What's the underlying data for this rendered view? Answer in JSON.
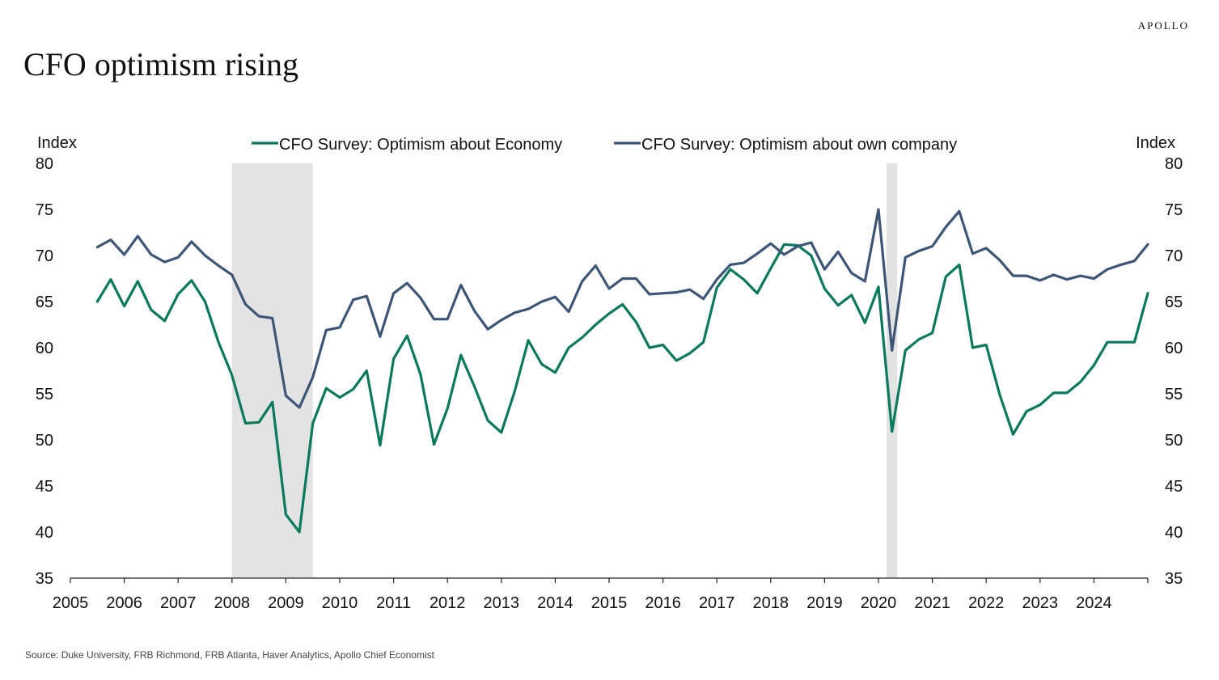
{
  "brand": "APOLLO",
  "title": "CFO optimism rising",
  "source": "Source: Duke University, FRB Richmond, FRB Atlanta, Haver Analytics, Apollo Chief Economist",
  "chart_data": {
    "type": "line",
    "ylabel_left": "Index",
    "ylabel_right": "Index",
    "ylim": [
      35,
      80
    ],
    "yticks": [
      35,
      40,
      45,
      50,
      55,
      60,
      65,
      70,
      75,
      80
    ],
    "xlim": [
      2005,
      2025
    ],
    "xticks": [
      "2005",
      "2006",
      "2007",
      "2008",
      "2009",
      "2010",
      "2011",
      "2012",
      "2013",
      "2014",
      "2015",
      "2016",
      "2017",
      "2018",
      "2019",
      "2020",
      "2021",
      "2022",
      "2023",
      "2024"
    ],
    "grid": false,
    "legend": "top-center",
    "recessions": [
      {
        "start": 2008.0,
        "end": 2009.5
      },
      {
        "start": 2020.15,
        "end": 2020.35
      }
    ],
    "recession_color": "#e3e3e3",
    "series": [
      {
        "name": "CFO Survey: Optimism about Economy",
        "color": "#0a7a5c",
        "points": [
          [
            2005.5,
            65.0
          ],
          [
            2005.75,
            67.4
          ],
          [
            2006.0,
            64.5
          ],
          [
            2006.25,
            67.2
          ],
          [
            2006.5,
            64.1
          ],
          [
            2006.75,
            62.9
          ],
          [
            2007.0,
            65.8
          ],
          [
            2007.25,
            67.3
          ],
          [
            2007.5,
            65.0
          ],
          [
            2007.75,
            60.6
          ],
          [
            2008.0,
            57.0
          ],
          [
            2008.25,
            51.8
          ],
          [
            2008.5,
            51.9
          ],
          [
            2008.75,
            54.1
          ],
          [
            2009.0,
            41.9
          ],
          [
            2009.25,
            40.0
          ],
          [
            2009.5,
            51.8
          ],
          [
            2009.75,
            55.6
          ],
          [
            2010.0,
            54.6
          ],
          [
            2010.25,
            55.5
          ],
          [
            2010.5,
            57.5
          ],
          [
            2010.75,
            49.4
          ],
          [
            2011.0,
            58.8
          ],
          [
            2011.25,
            61.3
          ],
          [
            2011.5,
            57.1
          ],
          [
            2011.75,
            49.5
          ],
          [
            2012.0,
            53.4
          ],
          [
            2012.25,
            59.2
          ],
          [
            2012.5,
            55.8
          ],
          [
            2012.75,
            52.1
          ],
          [
            2013.0,
            50.8
          ],
          [
            2013.25,
            55.3
          ],
          [
            2013.5,
            60.8
          ],
          [
            2013.75,
            58.2
          ],
          [
            2014.0,
            57.3
          ],
          [
            2014.25,
            60.0
          ],
          [
            2014.5,
            61.1
          ],
          [
            2014.75,
            62.5
          ],
          [
            2015.0,
            63.7
          ],
          [
            2015.25,
            64.7
          ],
          [
            2015.5,
            62.8
          ],
          [
            2015.75,
            60.0
          ],
          [
            2016.0,
            60.3
          ],
          [
            2016.25,
            58.6
          ],
          [
            2016.5,
            59.4
          ],
          [
            2016.75,
            60.6
          ],
          [
            2017.0,
            66.5
          ],
          [
            2017.25,
            68.5
          ],
          [
            2017.5,
            67.4
          ],
          [
            2017.75,
            65.9
          ],
          [
            2018.0,
            68.6
          ],
          [
            2018.25,
            71.2
          ],
          [
            2018.5,
            71.1
          ],
          [
            2018.75,
            70.0
          ],
          [
            2019.0,
            66.4
          ],
          [
            2019.25,
            64.6
          ],
          [
            2019.5,
            65.7
          ],
          [
            2019.75,
            62.7
          ],
          [
            2020.0,
            66.6
          ],
          [
            2020.25,
            50.9
          ],
          [
            2020.5,
            59.7
          ],
          [
            2020.75,
            60.9
          ],
          [
            2021.0,
            61.6
          ],
          [
            2021.25,
            67.7
          ],
          [
            2021.5,
            69.0
          ],
          [
            2021.75,
            60.0
          ],
          [
            2022.0,
            60.3
          ],
          [
            2022.25,
            54.9
          ],
          [
            2022.5,
            50.6
          ],
          [
            2022.75,
            53.1
          ],
          [
            2023.0,
            53.8
          ],
          [
            2023.25,
            55.1
          ],
          [
            2023.5,
            55.1
          ],
          [
            2023.75,
            56.3
          ],
          [
            2024.0,
            58.1
          ],
          [
            2024.25,
            60.6
          ],
          [
            2024.5,
            60.6
          ],
          [
            2024.75,
            60.6
          ],
          [
            2025.0,
            65.9
          ]
        ]
      },
      {
        "name": "CFO Survey: Optimism about own company",
        "color": "#3d5677",
        "points": [
          [
            2005.5,
            70.9
          ],
          [
            2005.75,
            71.7
          ],
          [
            2006.0,
            70.1
          ],
          [
            2006.25,
            72.1
          ],
          [
            2006.5,
            70.1
          ],
          [
            2006.75,
            69.3
          ],
          [
            2007.0,
            69.8
          ],
          [
            2007.25,
            71.5
          ],
          [
            2007.5,
            70.0
          ],
          [
            2007.75,
            68.9
          ],
          [
            2008.0,
            67.9
          ],
          [
            2008.25,
            64.7
          ],
          [
            2008.5,
            63.4
          ],
          [
            2008.75,
            63.2
          ],
          [
            2009.0,
            54.8
          ],
          [
            2009.25,
            53.5
          ],
          [
            2009.5,
            56.8
          ],
          [
            2009.75,
            61.9
          ],
          [
            2010.0,
            62.2
          ],
          [
            2010.25,
            65.2
          ],
          [
            2010.5,
            65.6
          ],
          [
            2010.75,
            61.2
          ],
          [
            2011.0,
            65.9
          ],
          [
            2011.25,
            67.0
          ],
          [
            2011.5,
            65.4
          ],
          [
            2011.75,
            63.1
          ],
          [
            2012.0,
            63.1
          ],
          [
            2012.25,
            66.8
          ],
          [
            2012.5,
            64.0
          ],
          [
            2012.75,
            62.0
          ],
          [
            2013.0,
            63.0
          ],
          [
            2013.25,
            63.8
          ],
          [
            2013.5,
            64.2
          ],
          [
            2013.75,
            65.0
          ],
          [
            2014.0,
            65.5
          ],
          [
            2014.25,
            63.9
          ],
          [
            2014.5,
            67.2
          ],
          [
            2014.75,
            68.9
          ],
          [
            2015.0,
            66.4
          ],
          [
            2015.25,
            67.5
          ],
          [
            2015.5,
            67.5
          ],
          [
            2015.75,
            65.8
          ],
          [
            2016.0,
            65.9
          ],
          [
            2016.25,
            66.0
          ],
          [
            2016.5,
            66.3
          ],
          [
            2016.75,
            65.3
          ],
          [
            2017.0,
            67.4
          ],
          [
            2017.25,
            69.0
          ],
          [
            2017.5,
            69.2
          ],
          [
            2017.75,
            70.2
          ],
          [
            2018.0,
            71.3
          ],
          [
            2018.25,
            70.1
          ],
          [
            2018.5,
            71.0
          ],
          [
            2018.75,
            71.4
          ],
          [
            2019.0,
            68.5
          ],
          [
            2019.25,
            70.4
          ],
          [
            2019.5,
            68.1
          ],
          [
            2019.75,
            67.2
          ],
          [
            2020.0,
            75.0
          ],
          [
            2020.25,
            59.7
          ],
          [
            2020.5,
            69.8
          ],
          [
            2020.75,
            70.5
          ],
          [
            2021.0,
            71.0
          ],
          [
            2021.25,
            73.1
          ],
          [
            2021.5,
            74.8
          ],
          [
            2021.75,
            70.2
          ],
          [
            2022.0,
            70.8
          ],
          [
            2022.25,
            69.5
          ],
          [
            2022.5,
            67.8
          ],
          [
            2022.75,
            67.8
          ],
          [
            2023.0,
            67.3
          ],
          [
            2023.25,
            67.9
          ],
          [
            2023.5,
            67.4
          ],
          [
            2023.75,
            67.8
          ],
          [
            2024.0,
            67.5
          ],
          [
            2024.25,
            68.5
          ],
          [
            2024.5,
            69.0
          ],
          [
            2024.75,
            69.4
          ],
          [
            2025.0,
            71.2
          ]
        ]
      }
    ]
  }
}
